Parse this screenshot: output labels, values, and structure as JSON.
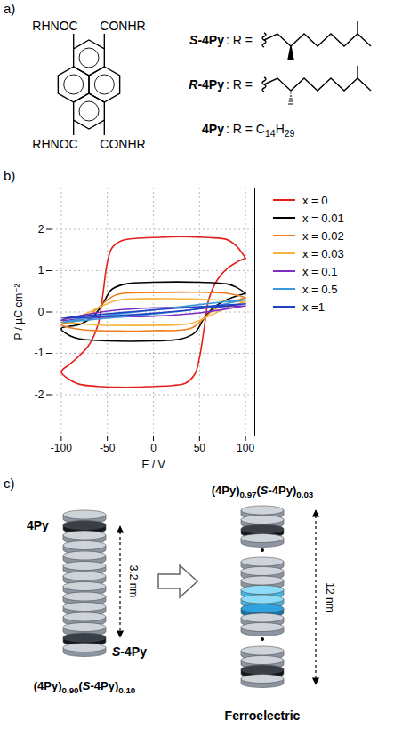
{
  "panel_a": {
    "letter": "a)",
    "groups": {
      "top_left": "RHNOC",
      "top_right": "CONHR",
      "bottom_left": "RHNOC",
      "bottom_right": "CONHR"
    },
    "substituents": [
      {
        "name": "S-4Py",
        "text": ": R ="
      },
      {
        "name": "R-4Py",
        "text": ": R ="
      },
      {
        "name": "4Py",
        "text": ": R = C14H29"
      }
    ]
  },
  "panel_b": {
    "letter": "b)"
  },
  "chart_data": {
    "type": "line",
    "xlabel": "E / V",
    "ylabel": "P / µC cm⁻²",
    "xlim": [
      -110,
      110
    ],
    "xticks": [
      -100,
      -50,
      0,
      50,
      100
    ],
    "ylim": [
      -3,
      3
    ],
    "yticks": [
      -2,
      -1,
      0,
      1,
      2
    ],
    "grid": true,
    "legend": "right",
    "series": [
      {
        "name": "x = 0",
        "color": "#e3201b",
        "x": [
          100,
          90,
          80,
          60,
          40,
          20,
          0,
          -20,
          -35,
          -45,
          -50,
          -55,
          -60,
          -70,
          -80,
          -90,
          -100,
          -90,
          -80,
          -60,
          -40,
          -20,
          0,
          20,
          35,
          45,
          50,
          55,
          60,
          70,
          80,
          90,
          100
        ],
        "values": [
          1.3,
          1.6,
          1.75,
          1.8,
          1.82,
          1.82,
          1.8,
          1.78,
          1.72,
          1.55,
          1.2,
          0.4,
          -0.3,
          -0.8,
          -1.05,
          -1.25,
          -1.45,
          -1.65,
          -1.75,
          -1.8,
          -1.82,
          -1.82,
          -1.8,
          -1.78,
          -1.72,
          -1.5,
          -1.1,
          -0.4,
          0.3,
          0.8,
          1.05,
          1.2,
          1.3
        ]
      },
      {
        "name": "x = 0.01",
        "color": "#000000",
        "x": [
          100,
          90,
          80,
          50,
          0,
          -30,
          -45,
          -55,
          -65,
          -80,
          -100,
          -90,
          -80,
          -50,
          0,
          30,
          45,
          55,
          65,
          80,
          100
        ],
        "values": [
          0.45,
          0.6,
          0.68,
          0.72,
          0.72,
          0.68,
          0.55,
          0.2,
          -0.1,
          -0.3,
          -0.4,
          -0.58,
          -0.65,
          -0.7,
          -0.7,
          -0.65,
          -0.5,
          -0.15,
          0.1,
          0.3,
          0.45
        ]
      },
      {
        "name": "x = 0.02",
        "color": "#f07c1e",
        "x": [
          100,
          80,
          40,
          0,
          -40,
          -55,
          -65,
          -80,
          -100,
          -80,
          -40,
          0,
          40,
          55,
          65,
          80,
          100
        ],
        "values": [
          0.35,
          0.45,
          0.48,
          0.47,
          0.42,
          0.2,
          0,
          -0.2,
          -0.3,
          -0.42,
          -0.46,
          -0.45,
          -0.4,
          -0.15,
          0.05,
          0.2,
          0.35
        ]
      },
      {
        "name": "x = 0.03",
        "color": "#f5b43c",
        "x": [
          100,
          60,
          0,
          -40,
          -60,
          -80,
          -100,
          -70,
          0,
          40,
          60,
          80,
          100
        ],
        "values": [
          0.25,
          0.3,
          0.32,
          0.28,
          0.1,
          -0.1,
          -0.2,
          -0.3,
          -0.32,
          -0.28,
          -0.1,
          0.1,
          0.25
        ]
      },
      {
        "name": "x = 0.1",
        "color": "#7b2fc0",
        "x": [
          100,
          50,
          0,
          -50,
          -100,
          -50,
          0,
          50,
          100
        ],
        "values": [
          0.15,
          0.12,
          0.1,
          0.02,
          -0.2,
          -0.12,
          -0.1,
          -0.02,
          0.15
        ]
      },
      {
        "name": "x = 0.5",
        "color": "#3a9ad9",
        "x": [
          100,
          50,
          0,
          -50,
          -100,
          -50,
          0,
          50,
          100
        ],
        "values": [
          0.3,
          0.18,
          0.05,
          -0.08,
          -0.25,
          -0.15,
          -0.05,
          0.08,
          0.3
        ]
      },
      {
        "name": "x =1",
        "color": "#1f3fc4",
        "x": [
          100,
          0,
          -100,
          0,
          100
        ],
        "values": [
          0.2,
          0.05,
          -0.15,
          -0.03,
          0.2
        ]
      }
    ]
  },
  "panel_c": {
    "letter": "c)",
    "left_label": "4Py",
    "left_marker": "S-4Py",
    "left_spacing": "3.2 nm",
    "left_formula": "(4Py)0.90(S-4Py)0.10",
    "right_formula": "(4Py)0.97(S-4Py)0.03",
    "right_spacing": "12 nm",
    "right_caption": "Ferroelectric"
  }
}
